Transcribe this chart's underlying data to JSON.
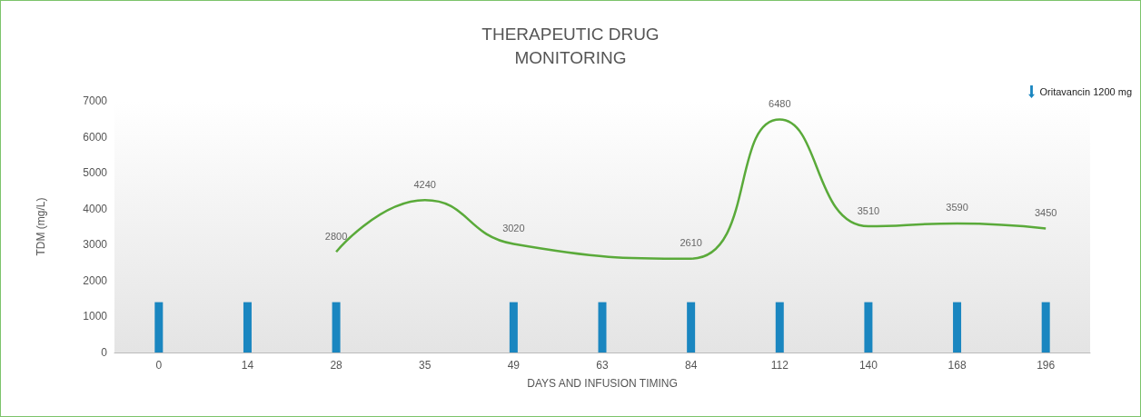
{
  "chart_data": {
    "type": "line",
    "title": "THERAPEUTIC DRUG\nMONITORING",
    "xlabel": "DAYS AND INFUSION TIMING",
    "ylabel": "TDM (mg/L)",
    "categories": [
      "0",
      "14",
      "28",
      "35",
      "49",
      "63",
      "84",
      "112",
      "140",
      "168",
      "196"
    ],
    "series": [
      {
        "values": [
          null,
          null,
          2800,
          4240,
          3020,
          null,
          2610,
          6480,
          3510,
          3590,
          3450
        ],
        "color": "#5aaa3a",
        "data_labels": true
      },
      {
        "name": "Oritavancin 1200 mg",
        "type": "bar",
        "color": "#1a86c0",
        "values": [
          1400,
          1400,
          1400,
          null,
          1400,
          1400,
          1400,
          1400,
          1400,
          1400,
          1400
        ]
      }
    ],
    "ylim": [
      0,
      7000
    ],
    "yticks": [
      0,
      1000,
      2000,
      3000,
      4000,
      5000,
      6000,
      7000
    ],
    "grid": false,
    "legend": "top right",
    "marker": "none"
  }
}
